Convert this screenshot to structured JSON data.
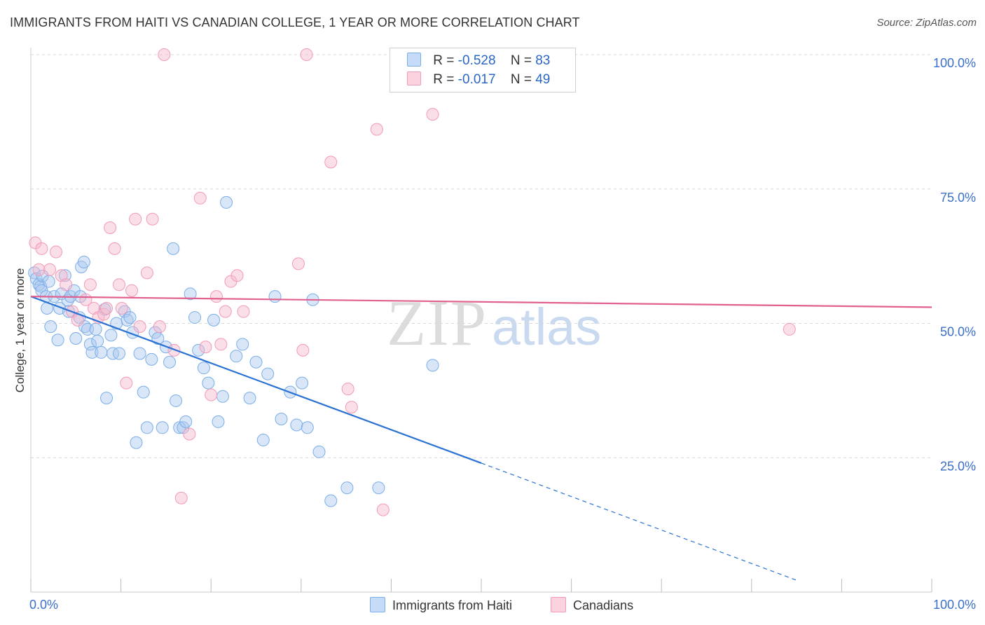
{
  "title": "IMMIGRANTS FROM HAITI VS CANADIAN COLLEGE, 1 YEAR OR MORE CORRELATION CHART",
  "source": "Source: ZipAtlas.com",
  "watermark": {
    "zip": "ZIP",
    "atlas": "atlas"
  },
  "legend": {
    "rows": [
      {
        "r_label": "R =",
        "r_value": "-0.528",
        "n_label": "N =",
        "n_value": "83",
        "color": "#aac8f0"
      },
      {
        "r_label": "R =",
        "r_value": "-0.017",
        "n_label": "N =",
        "n_value": "49",
        "color": "#f6b8cc"
      }
    ]
  },
  "bottom_legend": [
    {
      "label": "Immigrants from Haiti",
      "color": "#aac8f0"
    },
    {
      "label": "Canadians",
      "color": "#f6b8cc"
    }
  ],
  "chart_data": {
    "type": "scatter",
    "title": "IMMIGRANTS FROM HAITI VS CANADIAN COLLEGE, 1 YEAR OR MORE CORRELATION CHART",
    "xlabel": "",
    "ylabel": "College, 1 year or more",
    "xlim": [
      0,
      100
    ],
    "ylim": [
      0,
      100
    ],
    "x_tick_labels": [
      "0.0%",
      "100.0%"
    ],
    "y_tick_labels": [
      "25.0%",
      "50.0%",
      "75.0%",
      "100.0%"
    ],
    "grid": true,
    "legend_position": "top-center",
    "series": [
      {
        "name": "Immigrants from Haiti",
        "color": "#7aaee8",
        "line_color": "#2a72d4",
        "trend": {
          "x": [
            0,
            50
          ],
          "y": [
            55.0,
            24.0
          ],
          "dashed_to": {
            "x": 85,
            "y": 2.2
          }
        },
        "points": [
          [
            0.4,
            59.4
          ],
          [
            0.6,
            58.3
          ],
          [
            0.9,
            57.2
          ],
          [
            1.1,
            56.9
          ],
          [
            1.2,
            56.1
          ],
          [
            1.3,
            58.8
          ],
          [
            1.7,
            55.0
          ],
          [
            1.8,
            52.8
          ],
          [
            2.0,
            57.8
          ],
          [
            2.2,
            49.4
          ],
          [
            2.6,
            55.0
          ],
          [
            3.0,
            46.9
          ],
          [
            3.2,
            52.8
          ],
          [
            3.4,
            55.5
          ],
          [
            3.8,
            58.9
          ],
          [
            4.1,
            54.3
          ],
          [
            4.2,
            52.2
          ],
          [
            4.4,
            55.0
          ],
          [
            4.8,
            56.1
          ],
          [
            5.0,
            47.2
          ],
          [
            5.4,
            51.1
          ],
          [
            5.5,
            55.0
          ],
          [
            5.6,
            60.5
          ],
          [
            5.9,
            61.4
          ],
          [
            6.0,
            49.4
          ],
          [
            6.3,
            48.9
          ],
          [
            6.6,
            46.1
          ],
          [
            6.8,
            44.6
          ],
          [
            7.2,
            48.9
          ],
          [
            7.4,
            46.7
          ],
          [
            7.8,
            44.6
          ],
          [
            8.2,
            52.6
          ],
          [
            8.4,
            36.1
          ],
          [
            8.9,
            47.8
          ],
          [
            9.1,
            44.4
          ],
          [
            9.5,
            50.0
          ],
          [
            9.8,
            44.4
          ],
          [
            10.4,
            52.2
          ],
          [
            10.7,
            50.6
          ],
          [
            11.0,
            51.1
          ],
          [
            11.3,
            48.3
          ],
          [
            11.7,
            27.8
          ],
          [
            12.1,
            44.4
          ],
          [
            12.5,
            37.2
          ],
          [
            12.9,
            30.6
          ],
          [
            13.4,
            43.3
          ],
          [
            13.8,
            48.3
          ],
          [
            14.1,
            47.2
          ],
          [
            14.6,
            30.6
          ],
          [
            15.0,
            45.6
          ],
          [
            15.4,
            42.8
          ],
          [
            15.8,
            63.9
          ],
          [
            16.1,
            35.6
          ],
          [
            16.5,
            30.6
          ],
          [
            16.9,
            30.6
          ],
          [
            17.2,
            31.7
          ],
          [
            17.7,
            55.5
          ],
          [
            18.2,
            51.1
          ],
          [
            18.6,
            45.0
          ],
          [
            19.2,
            41.7
          ],
          [
            19.7,
            38.9
          ],
          [
            20.3,
            50.6
          ],
          [
            20.8,
            31.7
          ],
          [
            21.3,
            36.4
          ],
          [
            21.7,
            72.5
          ],
          [
            22.8,
            43.9
          ],
          [
            23.5,
            46.1
          ],
          [
            24.3,
            36.1
          ],
          [
            25.0,
            42.8
          ],
          [
            25.8,
            28.3
          ],
          [
            26.3,
            40.6
          ],
          [
            27.1,
            55.0
          ],
          [
            27.8,
            32.2
          ],
          [
            28.8,
            37.2
          ],
          [
            29.5,
            31.1
          ],
          [
            30.1,
            38.9
          ],
          [
            30.7,
            30.6
          ],
          [
            31.3,
            54.4
          ],
          [
            32.0,
            26.1
          ],
          [
            33.3,
            17.0
          ],
          [
            35.1,
            19.4
          ],
          [
            38.6,
            19.4
          ],
          [
            44.6,
            42.2
          ]
        ]
      },
      {
        "name": "Canadians",
        "color": "#f29ab7",
        "line_color": "#e0608f",
        "trend": {
          "x": [
            0,
            100
          ],
          "y": [
            55.0,
            53.0
          ]
        },
        "points": [
          [
            0.5,
            65.0
          ],
          [
            0.9,
            60.0
          ],
          [
            1.2,
            63.9
          ],
          [
            2.1,
            60.0
          ],
          [
            2.8,
            63.3
          ],
          [
            3.4,
            58.9
          ],
          [
            3.9,
            57.2
          ],
          [
            4.6,
            52.2
          ],
          [
            5.2,
            50.6
          ],
          [
            6.1,
            54.4
          ],
          [
            6.6,
            57.2
          ],
          [
            7.0,
            52.8
          ],
          [
            7.5,
            51.1
          ],
          [
            8.1,
            51.7
          ],
          [
            8.4,
            52.8
          ],
          [
            8.8,
            67.8
          ],
          [
            9.3,
            63.9
          ],
          [
            9.8,
            57.2
          ],
          [
            10.1,
            52.8
          ],
          [
            10.6,
            38.9
          ],
          [
            11.2,
            56.1
          ],
          [
            11.6,
            69.4
          ],
          [
            12.1,
            49.4
          ],
          [
            12.9,
            59.4
          ],
          [
            13.5,
            69.4
          ],
          [
            14.3,
            49.4
          ],
          [
            14.8,
            100.0
          ],
          [
            15.9,
            45.0
          ],
          [
            16.7,
            17.5
          ],
          [
            17.6,
            29.4
          ],
          [
            18.8,
            73.3
          ],
          [
            19.4,
            45.6
          ],
          [
            20.0,
            36.7
          ],
          [
            20.6,
            55.0
          ],
          [
            21.1,
            46.1
          ],
          [
            21.6,
            52.2
          ],
          [
            22.2,
            57.8
          ],
          [
            22.9,
            58.9
          ],
          [
            23.6,
            52.2
          ],
          [
            29.7,
            61.1
          ],
          [
            30.2,
            45.0
          ],
          [
            30.6,
            100.0
          ],
          [
            33.3,
            80.0
          ],
          [
            35.2,
            37.8
          ],
          [
            35.6,
            34.4
          ],
          [
            38.4,
            86.1
          ],
          [
            39.1,
            15.3
          ],
          [
            44.6,
            88.9
          ],
          [
            84.2,
            48.9
          ]
        ]
      }
    ]
  }
}
